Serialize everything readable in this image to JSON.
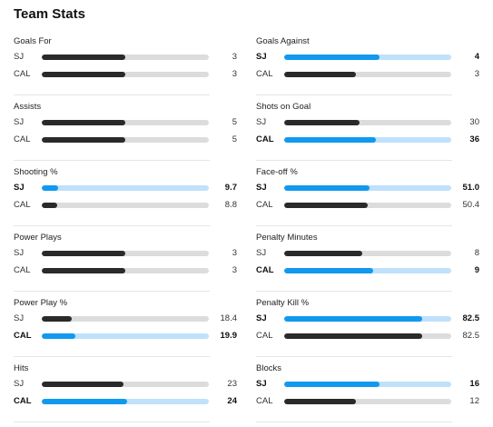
{
  "title": "Team Stats",
  "colors": {
    "leader": "#1199ee",
    "leader_track": "#bfe1fb",
    "other": "#2a2a2a",
    "track": "#dcdcdc"
  },
  "stats": [
    {
      "label": "Goals For",
      "rows": [
        {
          "team": "SJ",
          "value": "3",
          "fill": 0.5,
          "leader": false
        },
        {
          "team": "CAL",
          "value": "3",
          "fill": 0.5,
          "leader": false
        }
      ]
    },
    {
      "label": "Goals Against",
      "rows": [
        {
          "team": "SJ",
          "value": "4",
          "fill": 0.57,
          "leader": true
        },
        {
          "team": "CAL",
          "value": "3",
          "fill": 0.43,
          "leader": false
        }
      ]
    },
    {
      "label": "Assists",
      "rows": [
        {
          "team": "SJ",
          "value": "5",
          "fill": 0.5,
          "leader": false
        },
        {
          "team": "CAL",
          "value": "5",
          "fill": 0.5,
          "leader": false
        }
      ]
    },
    {
      "label": "Shots on Goal",
      "rows": [
        {
          "team": "SJ",
          "value": "30",
          "fill": 0.45,
          "leader": false
        },
        {
          "team": "CAL",
          "value": "36",
          "fill": 0.55,
          "leader": true
        }
      ]
    },
    {
      "label": "Shooting %",
      "rows": [
        {
          "team": "SJ",
          "value": "9.7",
          "fill": 0.1,
          "leader": true
        },
        {
          "team": "CAL",
          "value": "8.8",
          "fill": 0.09,
          "leader": false
        }
      ]
    },
    {
      "label": "Face-off %",
      "rows": [
        {
          "team": "SJ",
          "value": "51.0",
          "fill": 0.51,
          "leader": true
        },
        {
          "team": "CAL",
          "value": "50.4",
          "fill": 0.5,
          "leader": false
        }
      ]
    },
    {
      "label": "Power Plays",
      "rows": [
        {
          "team": "SJ",
          "value": "3",
          "fill": 0.5,
          "leader": false
        },
        {
          "team": "CAL",
          "value": "3",
          "fill": 0.5,
          "leader": false
        }
      ]
    },
    {
      "label": "Penalty Minutes",
      "rows": [
        {
          "team": "SJ",
          "value": "8",
          "fill": 0.47,
          "leader": false
        },
        {
          "team": "CAL",
          "value": "9",
          "fill": 0.53,
          "leader": true
        }
      ]
    },
    {
      "label": "Power Play %",
      "rows": [
        {
          "team": "SJ",
          "value": "18.4",
          "fill": 0.18,
          "leader": false
        },
        {
          "team": "CAL",
          "value": "19.9",
          "fill": 0.2,
          "leader": true
        }
      ]
    },
    {
      "label": "Penalty Kill %",
      "rows": [
        {
          "team": "SJ",
          "value": "82.5",
          "fill": 0.825,
          "leader": true
        },
        {
          "team": "CAL",
          "value": "82.5",
          "fill": 0.825,
          "leader": false
        }
      ]
    },
    {
      "label": "Hits",
      "rows": [
        {
          "team": "SJ",
          "value": "23",
          "fill": 0.49,
          "leader": false
        },
        {
          "team": "CAL",
          "value": "24",
          "fill": 0.51,
          "leader": true
        }
      ]
    },
    {
      "label": "Blocks",
      "rows": [
        {
          "team": "SJ",
          "value": "16",
          "fill": 0.57,
          "leader": true
        },
        {
          "team": "CAL",
          "value": "12",
          "fill": 0.43,
          "leader": false
        }
      ]
    }
  ]
}
